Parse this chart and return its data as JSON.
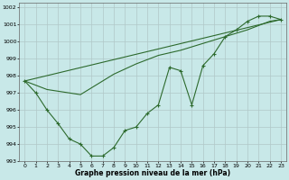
{
  "background_color": "#c8e8e8",
  "grid_color": "#b0c8c8",
  "line_color": "#2d6a2d",
  "title": "Graphe pression niveau de la mer (hPa)",
  "xlim": [
    -0.5,
    23.5
  ],
  "ylim": [
    993,
    1002.3
  ],
  "yticks": [
    993,
    994,
    995,
    996,
    997,
    998,
    999,
    1000,
    1001,
    1002
  ],
  "xticks": [
    0,
    1,
    2,
    3,
    4,
    5,
    6,
    7,
    8,
    9,
    10,
    11,
    12,
    13,
    14,
    15,
    16,
    17,
    18,
    19,
    20,
    21,
    22,
    23
  ],
  "series1_x": [
    0,
    1,
    2,
    3,
    4,
    5,
    6,
    7,
    8,
    9,
    10,
    11,
    12,
    13,
    14,
    15,
    16,
    17,
    18,
    19,
    20,
    21,
    22,
    23
  ],
  "series1_y": [
    997.7,
    997.0,
    996.0,
    995.2,
    994.3,
    994.0,
    993.3,
    993.3,
    993.8,
    994.8,
    995.0,
    995.8,
    996.3,
    998.5,
    998.3,
    996.3,
    998.6,
    999.3,
    1000.3,
    1000.7,
    1001.2,
    1001.5,
    1001.5,
    1001.3
  ],
  "series2_x": [
    0,
    2,
    5,
    8,
    10,
    12,
    14,
    16,
    18,
    20,
    22,
    23
  ],
  "series2_y": [
    997.7,
    997.2,
    996.9,
    998.1,
    998.7,
    999.2,
    999.5,
    999.9,
    1000.3,
    1000.7,
    1001.2,
    1001.3
  ],
  "series3_x": [
    0,
    23
  ],
  "series3_y": [
    997.7,
    1001.3
  ],
  "title_fontsize": 5.5,
  "tick_fontsize": 4.5
}
